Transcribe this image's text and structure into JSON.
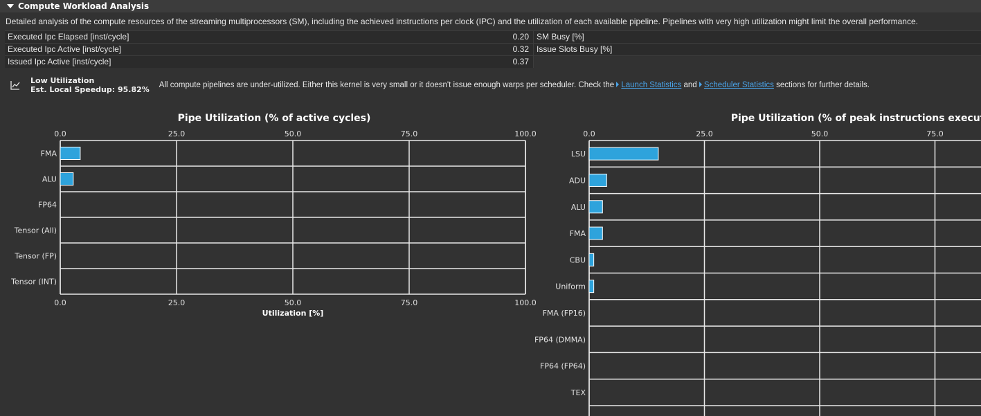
{
  "section": {
    "title": "Compute Workload Analysis",
    "description": "Detailed analysis of the compute resources of the streaming multiprocessors (SM), including the achieved instructions per clock (IPC) and the utilization of each available pipeline. Pipelines with very high utilization might limit the overall performance."
  },
  "metrics": [
    {
      "label": "Executed Ipc Elapsed [inst/cycle]",
      "value": "0.20",
      "label2": "SM Busy [%]"
    },
    {
      "label": "Executed Ipc Active [inst/cycle]",
      "value": "0.32",
      "label2": "Issue Slots Busy [%]"
    },
    {
      "label": "Issued Ipc Active [inst/cycle]",
      "value": "0.37",
      "label2": ""
    }
  ],
  "recommendation": {
    "icon": "line-chart-icon",
    "title": "Low Utilization",
    "speedup": "Est. Local Speedup: 95.82%",
    "text_before": "All compute pipelines are under-utilized. Either this kernel is very small or it doesn't issue enough warps per scheduler. Check the",
    "link1": "Launch Statistics",
    "text_mid": "and",
    "link2": "Scheduler Statistics",
    "text_after": "sections for further details."
  },
  "colors": {
    "bar": "#2ea3dc",
    "grid": "#e8e8e8",
    "background": "#323232"
  },
  "chart_data": [
    {
      "type": "bar",
      "orientation": "horizontal",
      "title": "Pipe Utilization (% of active cycles)",
      "xlabel": "Utilization [%]",
      "ylabel": "",
      "categories": [
        "FMA",
        "ALU",
        "FP64",
        "Tensor (All)",
        "Tensor (FP)",
        "Tensor (INT)"
      ],
      "values": [
        4.3,
        2.8,
        0,
        0,
        0,
        0
      ],
      "xlim": [
        0,
        100
      ],
      "ticks": [
        "0.0",
        "25.0",
        "50.0",
        "75.0",
        "100.0"
      ],
      "tick_values": [
        0,
        25,
        50,
        75,
        100
      ],
      "grid": true
    },
    {
      "type": "bar",
      "orientation": "horizontal",
      "title": "Pipe Utilization (% of peak instructions executed)",
      "xlabel": "",
      "ylabel": "",
      "categories": [
        "LSU",
        "ADU",
        "ALU",
        "FMA",
        "CBU",
        "Uniform",
        "FMA (FP16)",
        "FP64 (DMMA)",
        "FP64 (FP64)",
        "TEX"
      ],
      "values": [
        15.0,
        3.8,
        2.9,
        2.9,
        1.0,
        1.0,
        0,
        0,
        0,
        0
      ],
      "xlim": [
        0,
        100
      ],
      "ticks": [
        "0.0",
        "25.0",
        "50.0",
        "75.0"
      ],
      "tick_values": [
        0,
        25,
        50,
        75
      ],
      "grid": true
    }
  ]
}
